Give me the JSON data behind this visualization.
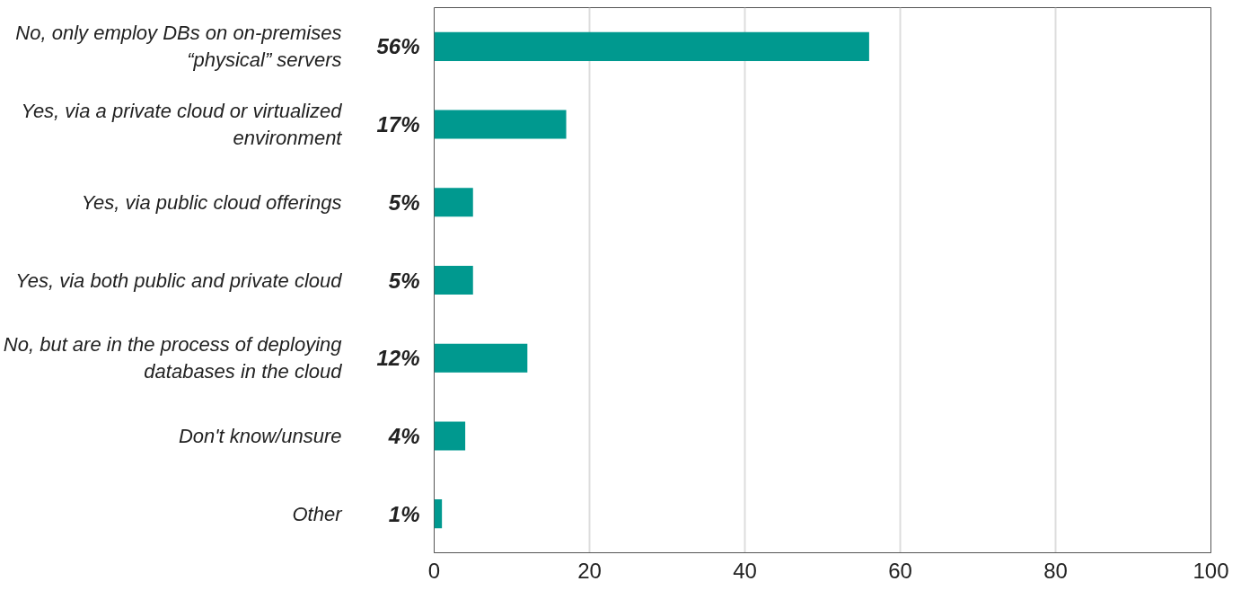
{
  "chart_data": {
    "type": "bar",
    "orientation": "horizontal",
    "categories": [
      "No, only employ DBs on on-premises “physical” servers",
      "Yes, via a private cloud or virtualized environment",
      "Yes, via public cloud offerings",
      "Yes, via both public and private cloud",
      "No, but are in the process of deploying databases in the cloud",
      "Don't know/unsure",
      "Other"
    ],
    "values": [
      56,
      17,
      5,
      5,
      12,
      4,
      1
    ],
    "value_labels": [
      "56%",
      "17%",
      "5%",
      "5%",
      "12%",
      "4%",
      "1%"
    ],
    "color": "#00998f",
    "xlim": [
      0,
      100
    ],
    "xticks": [
      0,
      20,
      40,
      60,
      80,
      100
    ],
    "grid": "x"
  }
}
